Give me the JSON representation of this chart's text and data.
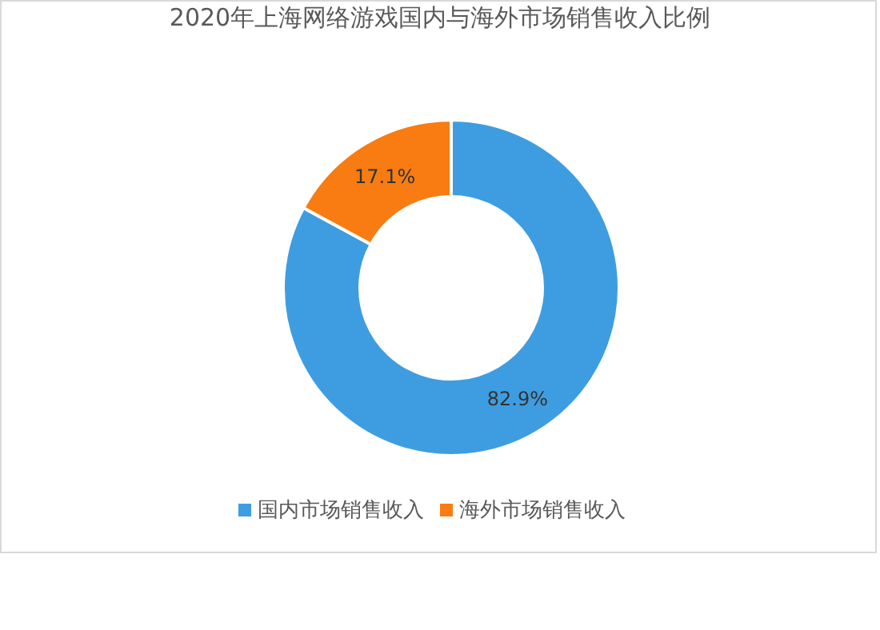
{
  "chart_data": {
    "type": "donut",
    "title": "2020年上海网络游戏国内与海外市场销售收入比例",
    "categories": [
      "国内市场销售收入",
      "海外市场销售收入"
    ],
    "values": [
      82.9,
      17.1
    ],
    "colors": [
      "#3e9de0",
      "#f87c12"
    ],
    "value_labels": [
      "82.9%",
      "17.1%"
    ],
    "legend": "bottom"
  }
}
